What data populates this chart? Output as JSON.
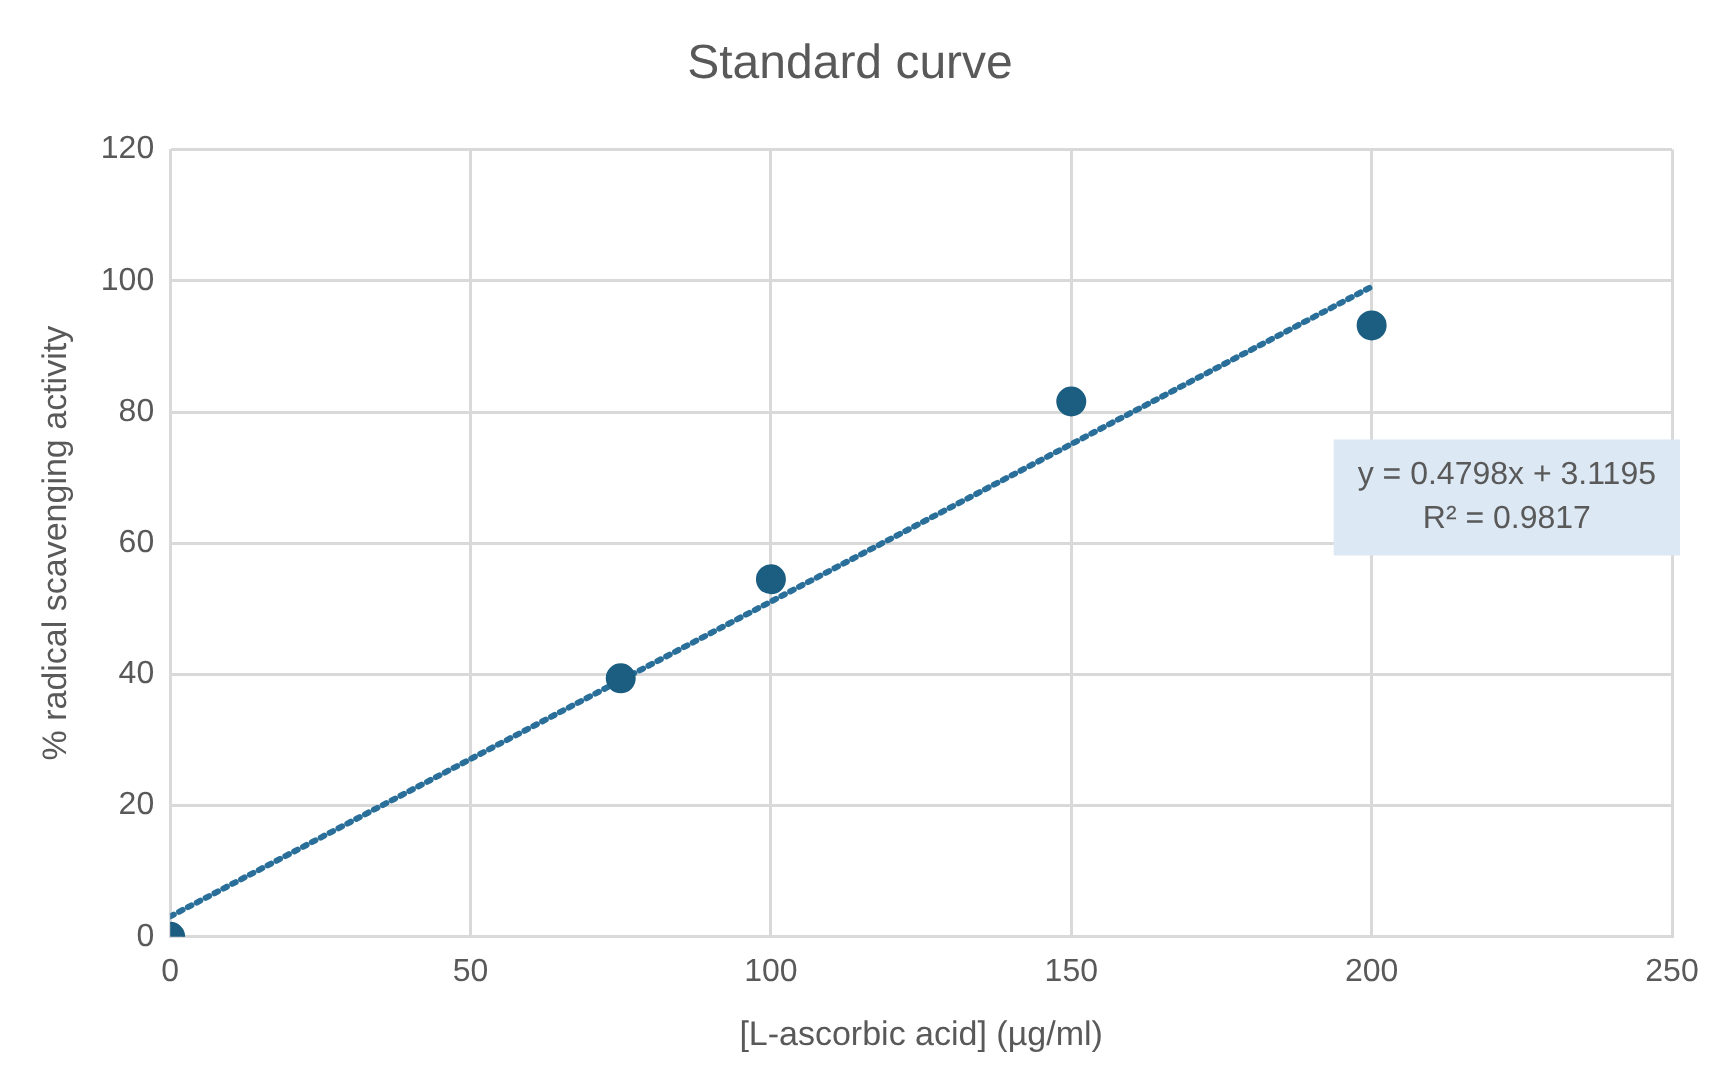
{
  "chart_data": {
    "type": "scatter",
    "title": "Standard curve",
    "xlabel": "[L-ascorbic acid] (µg/ml)",
    "ylabel": "% radical scavenging activity",
    "xlim": [
      0,
      250
    ],
    "xticks": [
      0,
      50,
      100,
      150,
      200,
      250
    ],
    "ylim": [
      0,
      120
    ],
    "yticks": [
      0,
      20,
      40,
      60,
      80,
      100,
      120
    ],
    "grid": true,
    "marker": "circle",
    "annotations": [
      "y = 0.4798x + 3.1195",
      "R² = 0.9817"
    ],
    "series": [
      {
        "type": "scatter",
        "color": "#1b5e82",
        "x": [
          0,
          75,
          100,
          150,
          200
        ],
        "values": [
          0,
          39.4,
          54.5,
          81.6,
          93.2
        ]
      },
      {
        "type": "line",
        "color": "#2a6f9a",
        "line_style": "dotted",
        "marker": "none",
        "x": [
          0,
          200
        ],
        "values": [
          3.1,
          99.1
        ]
      }
    ]
  }
}
